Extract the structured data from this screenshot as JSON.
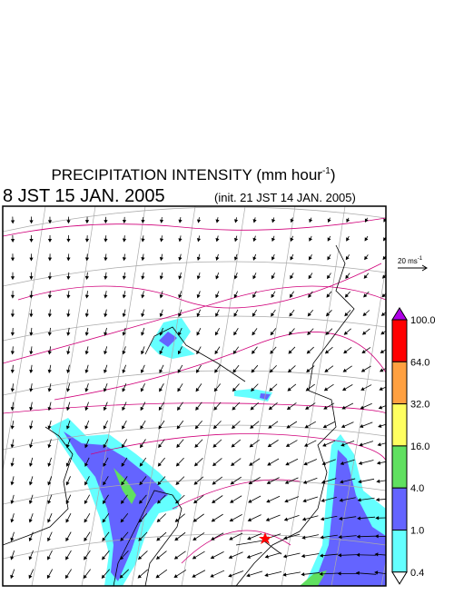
{
  "header": {
    "title": "PRECIPITATION INTENSITY (mm hour",
    "title_exponent": "-1",
    "title_close": ")",
    "valid_time": "8 JST 15 JAN. 2005",
    "init_time": "(init. 21 JST 14 JAN. 2005)"
  },
  "wind_reference": {
    "label": "20 ms",
    "exponent": "-1"
  },
  "colorbar": {
    "levels": [
      {
        "value": 100,
        "label": "100.0"
      },
      {
        "value": 64,
        "label": "64.0"
      },
      {
        "value": 32,
        "label": "32.0"
      },
      {
        "value": 16,
        "label": "16.0"
      },
      {
        "value": 4,
        "label": "4.0"
      },
      {
        "value": 1,
        "label": "1.0"
      },
      {
        "value": 0.4,
        "label": "0.4"
      }
    ],
    "colors": [
      "#b000e8",
      "#ff0000",
      "#ffa040",
      "#ffff60",
      "#60e060",
      "#6464ff",
      "#64ffff",
      "#ffffff"
    ]
  }
}
